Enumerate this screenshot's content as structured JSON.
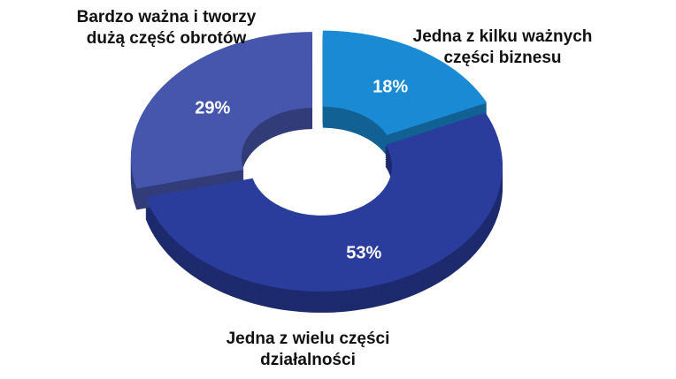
{
  "chart_data": {
    "type": "donut",
    "categories": [
      "Jedna z kilku ważnych części biznesu",
      "Jedna z wielu części działalności",
      "Bardzo ważna i tworzy dużą część obrotów"
    ],
    "values": [
      18,
      53,
      29
    ],
    "value_labels": [
      "18%",
      "53%",
      "29%"
    ],
    "colors": [
      "#1a8ad4",
      "#2a3c9c",
      "#4656ac"
    ]
  }
}
